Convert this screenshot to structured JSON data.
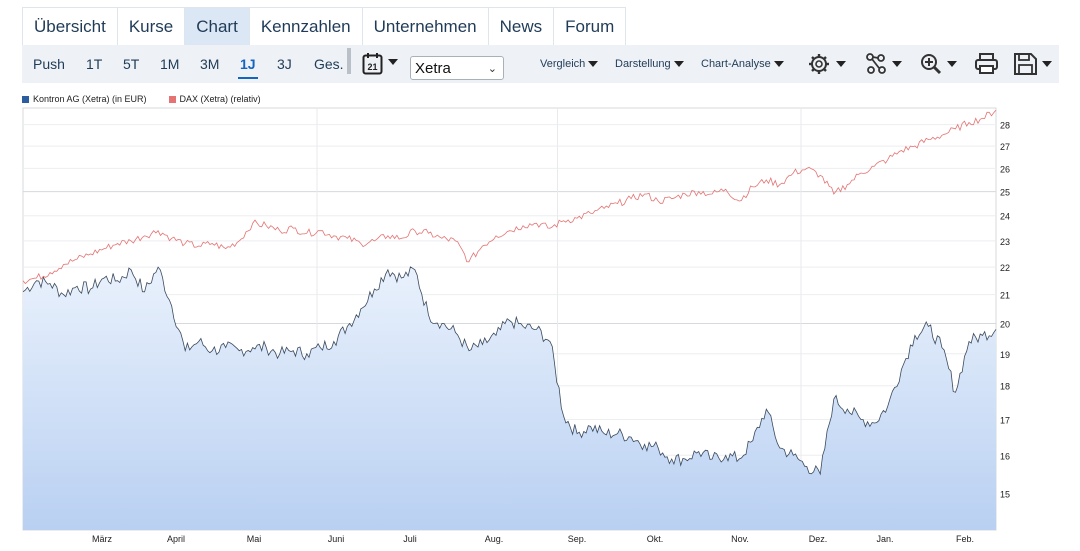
{
  "tabs": [
    {
      "label": "Übersicht",
      "active": false
    },
    {
      "label": "Kurse",
      "active": false
    },
    {
      "label": "Chart",
      "active": true
    },
    {
      "label": "Kennzahlen",
      "active": false
    },
    {
      "label": "Unternehmen",
      "active": false
    },
    {
      "label": "News",
      "active": false
    },
    {
      "label": "Forum",
      "active": false
    }
  ],
  "toolbar": {
    "ranges": [
      {
        "label": "Push",
        "active": false
      },
      {
        "label": "1T",
        "active": false
      },
      {
        "label": "5T",
        "active": false
      },
      {
        "label": "1M",
        "active": false
      },
      {
        "label": "3M",
        "active": false
      },
      {
        "label": "1J",
        "active": true
      },
      {
        "label": "3J",
        "active": false
      },
      {
        "label": "Ges.",
        "active": false
      }
    ],
    "calendar_day": "21",
    "exchange_select": "Xetra",
    "menus": [
      "Vergleich",
      "Darstellung",
      "Chart-Analyse"
    ],
    "icons": [
      "gear-icon",
      "indicators-icon",
      "zoom-icon",
      "print-icon",
      "save-icon"
    ]
  },
  "colors": {
    "primary": "#2c5d9e",
    "primary_fill_top": "#e9f1fc",
    "primary_fill_bottom": "#b9d0f2",
    "compare": "#e57373",
    "grid": "#dcdfe3"
  },
  "chart_data": {
    "type": "area",
    "legend": [
      {
        "name": "Kontron AG (Xetra) (in EUR)",
        "color": "#2c5d9e"
      },
      {
        "name": "DAX (Xetra) (relativ)",
        "color": "#e57373"
      }
    ],
    "x_ticks": [
      "März",
      "April",
      "Mai",
      "Juni",
      "Juli",
      "Aug.",
      "Sep.",
      "Okt.",
      "Nov.",
      "Dez.",
      "Jan.",
      "Feb."
    ],
    "y_ticks": [
      15,
      16,
      17,
      18,
      19,
      20,
      21,
      22,
      23,
      24,
      25,
      26,
      27,
      28
    ],
    "y_scale": "log",
    "ylim": [
      14.1,
      28.8
    ],
    "x": [
      "Feb. 10",
      "Feb. 15",
      "Feb. 20",
      "Feb. 25",
      "Feb. 29",
      "März 5",
      "März 10",
      "März 15",
      "März 20",
      "März 25",
      "März 28",
      "Apr. 2",
      "Apr. 5",
      "Apr. 10",
      "Apr. 15",
      "Apr. 20",
      "Apr. 25",
      "Apr. 30",
      "Mai 5",
      "Mai 10",
      "Mai 15",
      "Mai 20",
      "Mai 25",
      "Mai 31",
      "Juni 5",
      "Juni 10",
      "Juni 15",
      "Juni 20",
      "Juni 25",
      "Juni 30",
      "Juli 5",
      "Juli 10",
      "Juli 15",
      "Juli 20",
      "Juli 25",
      "Juli 31",
      "Aug. 5",
      "Aug. 10",
      "Aug. 15",
      "Aug. 20",
      "Aug. 25",
      "Aug. 31",
      "Sep. 5",
      "Sep. 10",
      "Sep. 15",
      "Sep. 20",
      "Sep. 25",
      "Sep. 30",
      "Okt. 5",
      "Okt. 10",
      "Okt. 15",
      "Okt. 20",
      "Okt. 25",
      "Okt. 31",
      "Nov. 5",
      "Nov. 10",
      "Nov. 15",
      "Nov. 20",
      "Nov. 25",
      "Nov. 30",
      "Dez. 5",
      "Dez. 10",
      "Dez. 15",
      "Dez. 20",
      "Dez. 31",
      "Jan. 5",
      "Jan. 10",
      "Jan. 15",
      "Jan. 20",
      "Jan. 25",
      "Jan. 31",
      "Feb. 5",
      "Feb. 10"
    ],
    "series": [
      {
        "name": "Kontron AG (Xetra) (in EUR)",
        "values": [
          21.1,
          21.5,
          21.4,
          21.0,
          21.3,
          21.2,
          21.6,
          21.5,
          21.9,
          21.1,
          22.0,
          20.6,
          19.1,
          19.4,
          19.1,
          19.2,
          19.1,
          19.2,
          19.2,
          19.0,
          19.1,
          19.0,
          19.2,
          19.4,
          19.9,
          20.5,
          21.2,
          21.9,
          21.6,
          21.9,
          20.3,
          20.0,
          19.7,
          19.1,
          19.3,
          19.6,
          20.1,
          19.9,
          19.8,
          19.4,
          17.1,
          16.6,
          16.8,
          16.6,
          16.6,
          16.5,
          16.3,
          16.2,
          15.9,
          15.9,
          16.1,
          15.9,
          16.0,
          15.9,
          16.4,
          17.3,
          16.2,
          16.0,
          15.7,
          15.5,
          17.6,
          17.3,
          17.0,
          16.9,
          17.4,
          18.5,
          19.6,
          19.9,
          19.2,
          17.8,
          19.4,
          19.6,
          19.8
        ]
      },
      {
        "name": "DAX (Xetra) (relativ)",
        "values": [
          21.5,
          21.6,
          21.8,
          22.1,
          22.3,
          22.5,
          22.7,
          22.9,
          23.0,
          23.2,
          23.4,
          23.1,
          22.9,
          22.8,
          22.9,
          22.7,
          23.0,
          23.7,
          23.6,
          23.4,
          23.5,
          23.3,
          23.4,
          23.2,
          23.1,
          22.9,
          23.0,
          23.2,
          23.1,
          23.4,
          23.3,
          23.1,
          23.0,
          22.2,
          22.8,
          23.2,
          23.4,
          23.6,
          23.7,
          23.5,
          23.8,
          23.9,
          24.1,
          24.3,
          24.5,
          24.7,
          24.9,
          24.6,
          24.7,
          24.9,
          25.0,
          24.9,
          25.1,
          24.6,
          25.2,
          25.5,
          25.3,
          25.8,
          26.0,
          25.7,
          24.9,
          25.3,
          25.8,
          26.1,
          26.4,
          26.8,
          27.0,
          27.3,
          27.5,
          27.8,
          28.1,
          28.3,
          28.7
        ]
      }
    ]
  }
}
